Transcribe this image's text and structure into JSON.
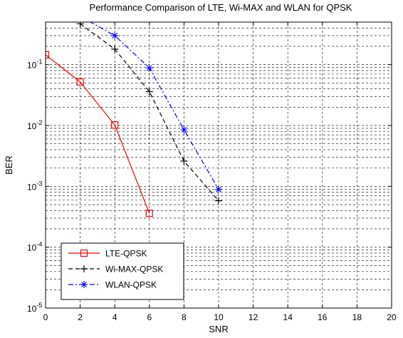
{
  "chart_data": {
    "type": "line",
    "title": "Performance Comparison of LTE, Wi-MAX and WLAN for QPSK",
    "xlabel": "SNR",
    "ylabel": "BER",
    "xlim": [
      0,
      20
    ],
    "ylim": [
      1e-05,
      0.5
    ],
    "yscale": "log",
    "grid": true,
    "x_ticks": [
      "0",
      "2",
      "4",
      "6",
      "8",
      "10",
      "12",
      "14",
      "16",
      "18",
      "20"
    ],
    "y_ticks": [
      {
        "base": "10",
        "exp": "-5",
        "value": 1e-05
      },
      {
        "base": "10",
        "exp": "-4",
        "value": 0.0001
      },
      {
        "base": "10",
        "exp": "-3",
        "value": 0.001
      },
      {
        "base": "10",
        "exp": "-2",
        "value": 0.01
      },
      {
        "base": "10",
        "exp": "-1",
        "value": 0.1
      }
    ],
    "legend_position": "bottom-left",
    "series": [
      {
        "name": "LTE-QPSK",
        "color": "#ff0000",
        "line_style": "solid",
        "marker": "square",
        "x": [
          0,
          2,
          4,
          6
        ],
        "y": [
          0.145,
          0.052,
          0.0102,
          0.00036
        ]
      },
      {
        "name": "Wi-MAX-QPSK",
        "color": "#000000",
        "line_style": "dashed",
        "marker": "plus",
        "x": [
          2,
          4,
          6,
          8,
          10
        ],
        "y": [
          0.47,
          0.18,
          0.036,
          0.0026,
          0.00058
        ]
      },
      {
        "name": "WLAN-QPSK",
        "color": "#0000ff",
        "line_style": "dashdot",
        "marker": "star",
        "x": [
          2,
          4,
          6,
          8,
          10
        ],
        "y": [
          0.62,
          0.3,
          0.088,
          0.0085,
          0.00089
        ]
      }
    ]
  }
}
